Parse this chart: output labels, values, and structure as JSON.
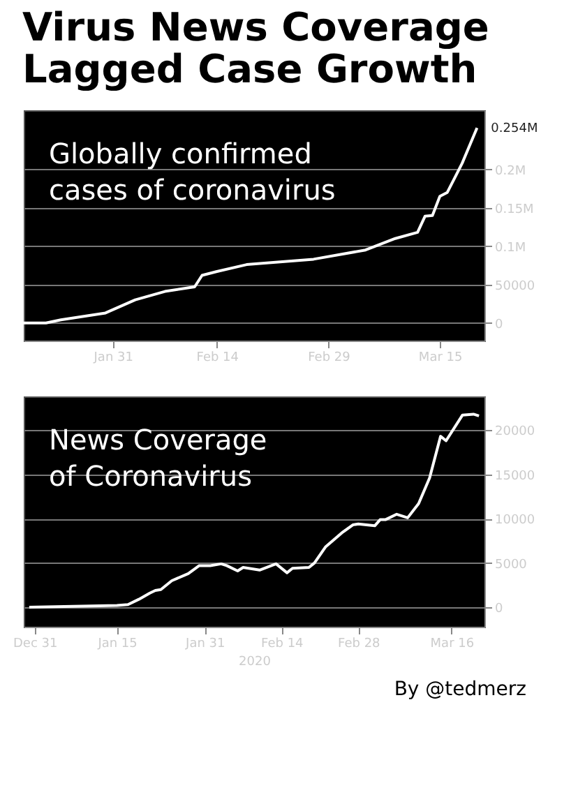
{
  "chart_data": [
    {
      "type": "line",
      "title": "Virus News Coverage\nLagged Case Growth",
      "annotations": [
        "Globally confirmed\ncases of coronavirus",
        {
          "text": "0.254M",
          "x": "2020-03-20",
          "y": 254000
        }
      ],
      "x": [
        "2020-01-19",
        "2020-01-22",
        "2020-01-24",
        "2020-01-30",
        "2020-02-03",
        "2020-02-07",
        "2020-02-11",
        "2020-02-12",
        "2020-02-14",
        "2020-02-18",
        "2020-02-27",
        "2020-03-05",
        "2020-03-09",
        "2020-03-12",
        "2020-03-13",
        "2020-03-14",
        "2020-03-15",
        "2020-03-16",
        "2020-03-18",
        "2020-03-20"
      ],
      "series": [
        {
          "color": "#ffffff",
          "values": [
            0,
            0,
            4000,
            13000,
            30000,
            41000,
            47000,
            62000,
            67000,
            76000,
            83000,
            95000,
            110000,
            118000,
            139000,
            140000,
            165000,
            170000,
            208000,
            254000
          ]
        }
      ],
      "xlim": [
        "2020-01-19",
        "2020-03-21"
      ],
      "xticks": [
        {
          "value": "2020-01-31",
          "label": "Jan 31"
        },
        {
          "value": "2020-02-14",
          "label": "Feb 14"
        },
        {
          "value": "2020-02-29",
          "label": "Feb 29"
        },
        {
          "value": "2020-03-15",
          "label": "Mar 15"
        }
      ],
      "ylim": [
        -23000,
        277000
      ],
      "yticks": [
        0,
        50000,
        {
          "value": 100000,
          "label": "0.1M"
        },
        {
          "value": 150000,
          "label": "0.15M"
        },
        {
          "value": 200000,
          "label": "0.2M"
        }
      ],
      "grid": "y",
      "marker": "none",
      "line_style": "solid"
    },
    {
      "type": "line",
      "xlabel": "2020",
      "annotations": [
        "News Coverage\nof Coronavirus",
        "By @tedmerz"
      ],
      "x": [
        "2019-12-30",
        "2020-01-15",
        "2020-01-17",
        "2020-01-19",
        "2020-01-21",
        "2020-01-22",
        "2020-01-23",
        "2020-01-25",
        "2020-01-28",
        "2020-01-30",
        "2020-02-01",
        "2020-02-03",
        "2020-02-04",
        "2020-02-06",
        "2020-02-07",
        "2020-02-10",
        "2020-02-13",
        "2020-02-15",
        "2020-02-16",
        "2020-02-19",
        "2020-02-20",
        "2020-02-22",
        "2020-02-25",
        "2020-02-27",
        "2020-02-28",
        "2020-03-02",
        "2020-03-03",
        "2020-03-04",
        "2020-03-06",
        "2020-03-08",
        "2020-03-10",
        "2020-03-12",
        "2020-03-14",
        "2020-03-15",
        "2020-03-18",
        "2020-03-20",
        "2020-03-21"
      ],
      "series": [
        {
          "color": "#ffffff",
          "values": [
            0,
            200,
            300,
            900,
            1600,
            1900,
            2000,
            3000,
            3800,
            4700,
            4700,
            4900,
            4700,
            4100,
            4500,
            4200,
            4900,
            3900,
            4400,
            4500,
            5000,
            6800,
            8400,
            9300,
            9400,
            9200,
            9900,
            9900,
            10500,
            10100,
            11700,
            14600,
            19300,
            18800,
            21700,
            21800,
            21600
          ]
        }
      ],
      "xlim": [
        "2019-12-29",
        "2020-03-22"
      ],
      "xticks": [
        {
          "value": "2019-12-31",
          "label": "Dec 31"
        },
        {
          "value": "2020-01-15",
          "label": "Jan 15"
        },
        {
          "value": "2020-01-31",
          "label": "Jan 31"
        },
        {
          "value": "2020-02-14",
          "label": "Feb 14"
        },
        {
          "value": "2020-02-28",
          "label": "Feb 28"
        },
        {
          "value": "2020-03-16",
          "label": "Mar 16"
        }
      ],
      "ylim": [
        -2200,
        23800
      ],
      "yticks": [
        0,
        5000,
        10000,
        15000,
        20000
      ],
      "grid": "y",
      "marker": "none",
      "line_style": "solid"
    }
  ]
}
